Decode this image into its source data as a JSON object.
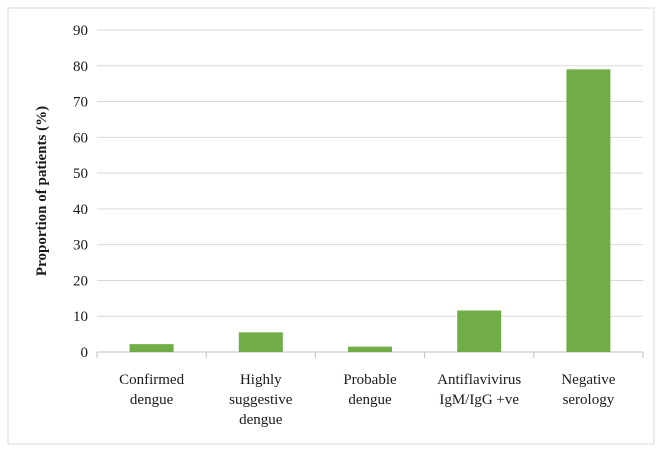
{
  "chart_data": {
    "type": "bar",
    "title": "",
    "xlabel": "",
    "ylabel": "Proportion of patients (%)",
    "ylim": [
      0,
      90
    ],
    "yticks": [
      0,
      10,
      20,
      30,
      40,
      50,
      60,
      70,
      80,
      90
    ],
    "grid": true,
    "legend": "none",
    "bar_color": "#70ad47",
    "categories": [
      [
        "Confirmed",
        "dengue"
      ],
      [
        "Highly",
        "suggestive",
        "dengue"
      ],
      [
        "Probable",
        "dengue"
      ],
      [
        "Antiflavivirus",
        "IgM/IgG +ve"
      ],
      [
        "Negative",
        "serology"
      ]
    ],
    "values": [
      2.2,
      5.5,
      1.5,
      11.6,
      79
    ]
  }
}
